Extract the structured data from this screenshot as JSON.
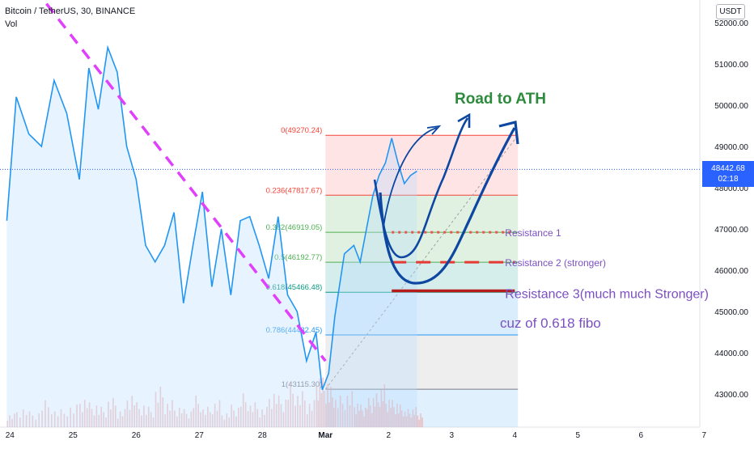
{
  "header": {
    "symbol": "Bitcoin / TetherUS, 30, BINANCE",
    "indicator": "Vol"
  },
  "currency_button": "USDT",
  "last_price": {
    "price": "48442.68",
    "countdown": "02:18"
  },
  "chart_data": {
    "type": "line",
    "symbol": "Bitcoin / TetherUS",
    "interval": "30",
    "exchange": "BINANCE",
    "x_ticks": [
      "24",
      "25",
      "26",
      "27",
      "28",
      "Mar",
      "2",
      "3",
      "4",
      "5",
      "6",
      "7"
    ],
    "y_ticks": [
      "52000.00",
      "51000.00",
      "50000.00",
      "49000.00",
      "48000.00",
      "47000.00",
      "46000.00",
      "45000.00",
      "44000.00",
      "43000.00"
    ],
    "ylim": [
      42300,
      52300
    ],
    "x": [
      23.95,
      24.1,
      24.3,
      24.5,
      24.7,
      24.9,
      25.1,
      25.25,
      25.4,
      25.55,
      25.7,
      25.85,
      26.0,
      26.15,
      26.3,
      26.45,
      26.6,
      26.75,
      26.9,
      27.05,
      27.2,
      27.35,
      27.5,
      27.65,
      27.8,
      27.95,
      28.1,
      28.25,
      28.4,
      28.55,
      28.7,
      28.85,
      28.95,
      29.05,
      29.15,
      29.3,
      29.45,
      29.55,
      29.65,
      29.75,
      29.85,
      29.95,
      30.05,
      30.15,
      30.25,
      30.35,
      30.45
    ],
    "price": [
      47200,
      50200,
      49300,
      49000,
      50600,
      49800,
      48200,
      50900,
      49900,
      51400,
      50800,
      49000,
      48200,
      46600,
      46200,
      46600,
      47400,
      45200,
      46600,
      47900,
      45600,
      47000,
      45400,
      47200,
      47300,
      46600,
      45800,
      47300,
      45400,
      45000,
      43800,
      44500,
      43100,
      43500,
      44900,
      46400,
      46600,
      46200,
      47000,
      47800,
      48300,
      48600,
      49200,
      48600,
      48100,
      48300,
      48400
    ],
    "volume": [
      6,
      9,
      7,
      12,
      8,
      10,
      14,
      11,
      9,
      13,
      8,
      16,
      11,
      9,
      18,
      12,
      10,
      8,
      14,
      9,
      12,
      7,
      10,
      15,
      11,
      9,
      17,
      14,
      20,
      16,
      12,
      25,
      22,
      18,
      14,
      16,
      12,
      10,
      13,
      15,
      19,
      14,
      12,
      10,
      8,
      9,
      7
    ],
    "fib_levels": [
      {
        "ratio": "0",
        "price": 49270.24,
        "label": "0(49270.24)",
        "color": "#f44336"
      },
      {
        "ratio": "0.236",
        "price": 47817.67,
        "label": "0.236(47817.67)",
        "color": "#f44336"
      },
      {
        "ratio": "0.382",
        "price": 46919.05,
        "label": "0.382(46919.05)",
        "color": "#4caf50"
      },
      {
        "ratio": "0.5",
        "price": 46192.77,
        "label": "0.5(46192.77)",
        "color": "#4caf50"
      },
      {
        "ratio": "0.618",
        "price": 45466.48,
        "label": "0.618(45466.48)",
        "color": "#089981"
      },
      {
        "ratio": "0.786",
        "price": 44432.45,
        "label": "0.786(44432.45)",
        "color": "#2196f3"
      },
      {
        "ratio": "1",
        "price": 43115.3,
        "label": "1(43115.30)",
        "color": "#787b86"
      }
    ],
    "fib_x_range": [
      29.0,
      32.05
    ],
    "trendline": {
      "from": [
        24.2,
        53200
      ],
      "to": [
        29.0,
        43800
      ],
      "color": "#e040fb"
    },
    "resistances": [
      {
        "label": "Resistance 1",
        "price": 46919.05,
        "style": "dotted",
        "color": "#ef5350",
        "label_color": "#7b4fc2"
      },
      {
        "label": "Resistance 2 (stronger)",
        "price": 46192.77,
        "style": "dashed",
        "color": "#e53935",
        "label_color": "#7b4fc2"
      },
      {
        "label": "Resistance 3(much much Stronger)",
        "price": 45500,
        "style": "solid",
        "color": "#b71c1c",
        "label_color": "#7b4fc2"
      }
    ],
    "annotations": [
      {
        "text": "Road to ATH",
        "color": "#2e8b3e"
      },
      {
        "text": "cuz of 0.618 fibo",
        "color": "#7b4fc2"
      }
    ],
    "colors": {
      "line": "#2196f3",
      "fill": "#bbdefb",
      "volume": "#ef9a9a",
      "arrows": "#0d47a1"
    }
  }
}
